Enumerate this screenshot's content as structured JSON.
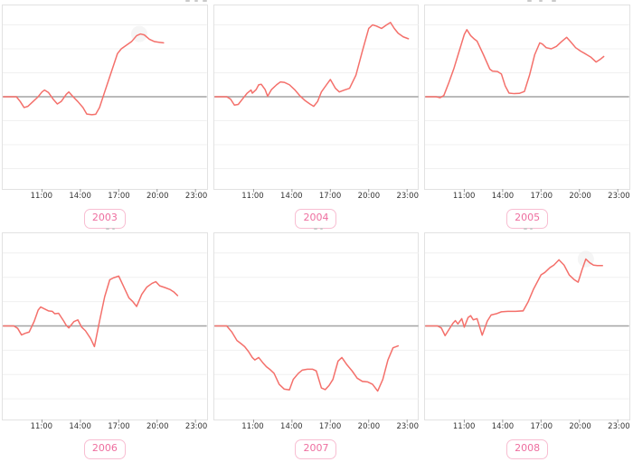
{
  "figure": {
    "tick_labels": [
      "11:00",
      "14:00",
      "17:00",
      "20:00",
      "23:00"
    ],
    "tick_hours": [
      11,
      14,
      17,
      20,
      23
    ]
  },
  "colors": {
    "line": "#f4706b",
    "zero_line": "#a3a3a3",
    "gridline": "#f0f0f0",
    "panel_border": "#e2e2e2",
    "tick_text": "#333333",
    "tag_text": "#ee6e9f",
    "tag_border": "#f8bed2"
  },
  "chart_data": [
    {
      "type": "line",
      "year_label": "2003",
      "xlabel": "",
      "ylabel": "",
      "x_range_hours": [
        8,
        23.9
      ],
      "ylim": [
        -3.9,
        3.8
      ],
      "grid": "horizontal",
      "halo": {
        "x": 18.6,
        "y": 2.62
      },
      "x": [
        8.0,
        9.0,
        9.3,
        9.6,
        9.9,
        10.3,
        10.7,
        11.0,
        11.2,
        11.5,
        11.9,
        12.2,
        12.5,
        12.9,
        13.1,
        13.4,
        13.8,
        14.2,
        14.5,
        14.9,
        15.2,
        15.5,
        15.9,
        16.4,
        16.9,
        17.2,
        17.6,
        18.0,
        18.4,
        18.7,
        19.0,
        19.4,
        19.8,
        20.2,
        20.5
      ],
      "values": [
        0,
        0,
        -0.2,
        -0.45,
        -0.4,
        -0.2,
        0.0,
        0.2,
        0.28,
        0.18,
        -0.12,
        -0.3,
        -0.2,
        0.1,
        0.2,
        0.02,
        -0.2,
        -0.45,
        -0.72,
        -0.75,
        -0.73,
        -0.45,
        0.2,
        1.0,
        1.8,
        2.0,
        2.15,
        2.3,
        2.55,
        2.62,
        2.58,
        2.4,
        2.3,
        2.27,
        2.25
      ]
    },
    {
      "type": "line",
      "year_label": "2004",
      "xlabel": "",
      "ylabel": "",
      "x_range_hours": [
        8,
        23.9
      ],
      "ylim": [
        -3.9,
        3.8
      ],
      "grid": "horizontal",
      "halo": null,
      "x": [
        8.0,
        8.9,
        9.2,
        9.5,
        9.8,
        10.2,
        10.5,
        10.8,
        10.9,
        11.2,
        11.4,
        11.6,
        11.9,
        12.1,
        12.4,
        12.8,
        13.1,
        13.4,
        13.8,
        14.2,
        14.6,
        15.0,
        15.4,
        15.7,
        16.0,
        16.3,
        16.7,
        17.0,
        17.4,
        17.7,
        18.1,
        18.5,
        19.0,
        19.5,
        20.0,
        20.3,
        20.6,
        21.0,
        21.4,
        21.7,
        22.0,
        22.3,
        22.7,
        23.1
      ],
      "values": [
        0,
        0,
        -0.1,
        -0.35,
        -0.32,
        -0.05,
        0.15,
        0.28,
        0.15,
        0.3,
        0.5,
        0.52,
        0.3,
        0.02,
        0.3,
        0.5,
        0.62,
        0.6,
        0.5,
        0.3,
        0.05,
        -0.15,
        -0.3,
        -0.4,
        -0.2,
        0.2,
        0.5,
        0.72,
        0.35,
        0.2,
        0.28,
        0.35,
        0.9,
        1.9,
        2.85,
        3.0,
        2.95,
        2.85,
        3.0,
        3.1,
        2.85,
        2.65,
        2.5,
        2.42
      ]
    },
    {
      "type": "line",
      "year_label": "2005",
      "xlabel": "",
      "ylabel": "",
      "x_range_hours": [
        8,
        23.9
      ],
      "ylim": [
        -3.9,
        3.8
      ],
      "grid": "horizontal",
      "halo": null,
      "x": [
        8.0,
        8.8,
        9.1,
        9.4,
        9.8,
        10.2,
        10.6,
        11.0,
        11.2,
        11.5,
        11.8,
        12.0,
        12.5,
        13.0,
        13.2,
        13.6,
        13.9,
        14.2,
        14.5,
        14.9,
        15.3,
        15.7,
        16.1,
        16.5,
        16.9,
        17.1,
        17.4,
        17.8,
        18.2,
        18.6,
        19.0,
        19.3,
        19.7,
        20.1,
        20.5,
        20.9,
        21.3,
        21.6,
        21.9
      ],
      "values": [
        0,
        0,
        -0.04,
        0.05,
        0.6,
        1.2,
        1.9,
        2.6,
        2.8,
        2.55,
        2.4,
        2.32,
        1.75,
        1.15,
        1.07,
        1.05,
        0.95,
        0.45,
        0.15,
        0.13,
        0.14,
        0.22,
        0.9,
        1.75,
        2.25,
        2.2,
        2.05,
        2.0,
        2.1,
        2.3,
        2.48,
        2.3,
        2.05,
        1.9,
        1.78,
        1.65,
        1.45,
        1.55,
        1.68
      ]
    },
    {
      "type": "line",
      "year_label": "2006",
      "xlabel": "",
      "ylabel": "",
      "x_range_hours": [
        8,
        23.9
      ],
      "ylim": [
        -3.9,
        3.8
      ],
      "grid": "horizontal",
      "halo": null,
      "x": [
        8.0,
        8.8,
        9.1,
        9.4,
        9.7,
        10.0,
        10.4,
        10.7,
        10.9,
        11.2,
        11.5,
        11.8,
        12.0,
        12.3,
        12.7,
        12.9,
        13.1,
        13.5,
        13.8,
        14.1,
        14.4,
        14.8,
        15.1,
        15.5,
        15.9,
        16.3,
        16.6,
        17.0,
        17.4,
        17.8,
        18.1,
        18.4,
        18.8,
        19.2,
        19.6,
        19.9,
        20.2,
        20.6,
        21.0,
        21.3,
        21.6
      ],
      "values": [
        0,
        0,
        -0.1,
        -0.37,
        -0.3,
        -0.25,
        0.2,
        0.65,
        0.78,
        0.7,
        0.62,
        0.6,
        0.5,
        0.52,
        0.2,
        0.02,
        -0.08,
        0.18,
        0.25,
        -0.05,
        -0.2,
        -0.52,
        -0.85,
        0.2,
        1.2,
        1.9,
        1.98,
        2.05,
        1.6,
        1.15,
        1.0,
        0.8,
        1.3,
        1.6,
        1.75,
        1.82,
        1.65,
        1.58,
        1.5,
        1.4,
        1.25
      ]
    },
    {
      "type": "line",
      "year_label": "2007",
      "xlabel": "",
      "ylabel": "",
      "x_range_hours": [
        8,
        23.9
      ],
      "ylim": [
        -3.9,
        3.8
      ],
      "grid": "horizontal",
      "halo": null,
      "x": [
        8.0,
        8.9,
        9.3,
        9.7,
        10.0,
        10.3,
        10.6,
        10.9,
        11.1,
        11.4,
        11.7,
        12.0,
        12.3,
        12.6,
        13.0,
        13.4,
        13.8,
        14.1,
        14.5,
        14.8,
        15.2,
        15.6,
        15.9,
        16.3,
        16.6,
        16.9,
        17.2,
        17.6,
        17.9,
        18.3,
        18.7,
        19.1,
        19.5,
        19.9,
        20.3,
        20.7,
        21.1,
        21.5,
        21.9,
        22.3
      ],
      "values": [
        0,
        0,
        -0.25,
        -0.6,
        -0.72,
        -0.85,
        -1.05,
        -1.3,
        -1.4,
        -1.3,
        -1.5,
        -1.68,
        -1.8,
        -1.95,
        -2.4,
        -2.6,
        -2.63,
        -2.2,
        -1.95,
        -1.82,
        -1.78,
        -1.78,
        -1.85,
        -2.55,
        -2.62,
        -2.45,
        -2.2,
        -1.45,
        -1.3,
        -1.6,
        -1.85,
        -2.15,
        -2.28,
        -2.3,
        -2.4,
        -2.68,
        -2.2,
        -1.4,
        -0.9,
        -0.82
      ]
    },
    {
      "type": "line",
      "year_label": "2008",
      "xlabel": "",
      "ylabel": "",
      "x_range_hours": [
        8,
        23.9
      ],
      "ylim": [
        -3.9,
        3.8
      ],
      "grid": "horizontal",
      "halo": {
        "x": 20.5,
        "y": 2.75
      },
      "x": [
        8.0,
        8.9,
        9.2,
        9.5,
        9.8,
        10.1,
        10.3,
        10.5,
        10.8,
        11.0,
        11.3,
        11.5,
        11.7,
        12.0,
        12.4,
        12.8,
        13.1,
        13.5,
        13.9,
        14.4,
        15.0,
        15.6,
        16.0,
        16.4,
        17.0,
        17.3,
        17.7,
        18.0,
        18.4,
        18.8,
        19.2,
        19.6,
        19.9,
        20.2,
        20.5,
        20.8,
        21.1,
        21.4,
        21.8
      ],
      "values": [
        0,
        0,
        -0.08,
        -0.4,
        -0.15,
        0.1,
        0.22,
        0.08,
        0.3,
        -0.05,
        0.35,
        0.42,
        0.25,
        0.3,
        -0.38,
        0.2,
        0.45,
        0.5,
        0.58,
        0.6,
        0.6,
        0.62,
        1.0,
        1.5,
        2.1,
        2.2,
        2.4,
        2.5,
        2.72,
        2.5,
        2.1,
        1.9,
        1.8,
        2.3,
        2.75,
        2.6,
        2.5,
        2.48,
        2.48
      ]
    }
  ]
}
